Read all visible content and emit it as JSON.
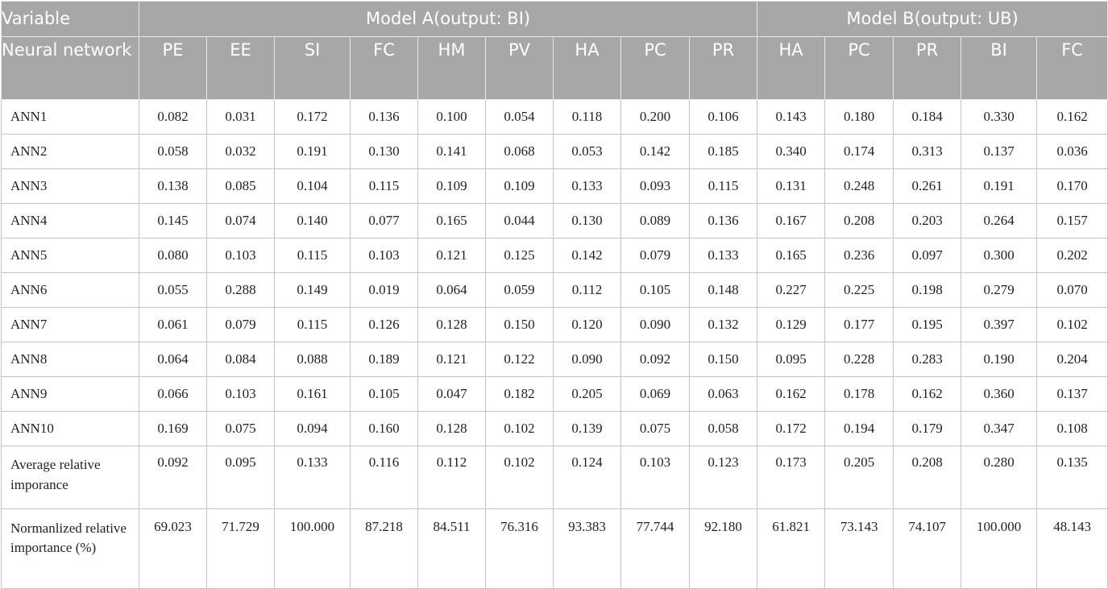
{
  "table": {
    "header": {
      "variable_label": "Variable",
      "model_a_label": "Model A(output: BI)",
      "model_b_label": "Model B(output: UB)",
      "neural_network_label": "Neural network",
      "columns": [
        "PE",
        "EE",
        "SI",
        "FC",
        "HM",
        "PV",
        "HA",
        "PC",
        "PR",
        "HA",
        "PC",
        "PR",
        "BI",
        "FC"
      ]
    },
    "rows": [
      {
        "label": "ANN1",
        "values": [
          "0.082",
          "0.031",
          "0.172",
          "0.136",
          "0.100",
          "0.054",
          "0.118",
          "0.200",
          "0.106",
          "0.143",
          "0.180",
          "0.184",
          "0.330",
          "0.162"
        ]
      },
      {
        "label": "ANN2",
        "values": [
          "0.058",
          "0.032",
          "0.191",
          "0.130",
          "0.141",
          "0.068",
          "0.053",
          "0.142",
          "0.185",
          "0.340",
          "0.174",
          "0.313",
          "0.137",
          "0.036"
        ]
      },
      {
        "label": "ANN3",
        "values": [
          "0.138",
          "0.085",
          "0.104",
          "0.115",
          "0.109",
          "0.109",
          "0.133",
          "0.093",
          "0.115",
          "0.131",
          "0.248",
          "0.261",
          "0.191",
          "0.170"
        ]
      },
      {
        "label": "ANN4",
        "values": [
          "0.145",
          "0.074",
          "0.140",
          "0.077",
          "0.165",
          "0.044",
          "0.130",
          "0.089",
          "0.136",
          "0.167",
          "0.208",
          "0.203",
          "0.264",
          "0.157"
        ]
      },
      {
        "label": "ANN5",
        "values": [
          "0.080",
          "0.103",
          "0.115",
          "0.103",
          "0.121",
          "0.125",
          "0.142",
          "0.079",
          "0.133",
          "0.165",
          "0.236",
          "0.097",
          "0.300",
          "0.202"
        ]
      },
      {
        "label": "ANN6",
        "values": [
          "0.055",
          "0.288",
          "0.149",
          "0.019",
          "0.064",
          "0.059",
          "0.112",
          "0.105",
          "0.148",
          "0.227",
          "0.225",
          "0.198",
          "0.279",
          "0.070"
        ]
      },
      {
        "label": "ANN7",
        "values": [
          "0.061",
          "0.079",
          "0.115",
          "0.126",
          "0.128",
          "0.150",
          "0.120",
          "0.090",
          "0.132",
          "0.129",
          "0.177",
          "0.195",
          "0.397",
          "0.102"
        ]
      },
      {
        "label": "ANN8",
        "values": [
          "0.064",
          "0.084",
          "0.088",
          "0.189",
          "0.121",
          "0.122",
          "0.090",
          "0.092",
          "0.150",
          "0.095",
          "0.228",
          "0.283",
          "0.190",
          "0.204"
        ]
      },
      {
        "label": "ANN9",
        "values": [
          "0.066",
          "0.103",
          "0.161",
          "0.105",
          "0.047",
          "0.182",
          "0.205",
          "0.069",
          "0.063",
          "0.162",
          "0.178",
          "0.162",
          "0.360",
          "0.137"
        ]
      },
      {
        "label": "ANN10",
        "values": [
          "0.169",
          "0.075",
          "0.094",
          "0.160",
          "0.128",
          "0.102",
          "0.139",
          "0.075",
          "0.058",
          "0.172",
          "0.194",
          "0.179",
          "0.347",
          "0.108"
        ]
      },
      {
        "label": "Average relative imporance",
        "values": [
          "0.092",
          "0.095",
          "0.133",
          "0.116",
          "0.112",
          "0.102",
          "0.124",
          "0.103",
          "0.123",
          "0.173",
          "0.205",
          "0.208",
          "0.280",
          "0.135"
        ]
      },
      {
        "label": "Normanlized relative importance (%)",
        "values": [
          "69.023",
          "71.729",
          "100.000",
          "87.218",
          "84.511",
          "76.316",
          "93.383",
          "77.744",
          "92.180",
          "61.821",
          "73.143",
          "74.107",
          "100.000",
          "48.143"
        ]
      }
    ]
  },
  "colors": {
    "header_bg": "#a7a7a7",
    "header_text": "#ffffff",
    "grid": "#c4c4c4",
    "body_text": "#222222"
  }
}
